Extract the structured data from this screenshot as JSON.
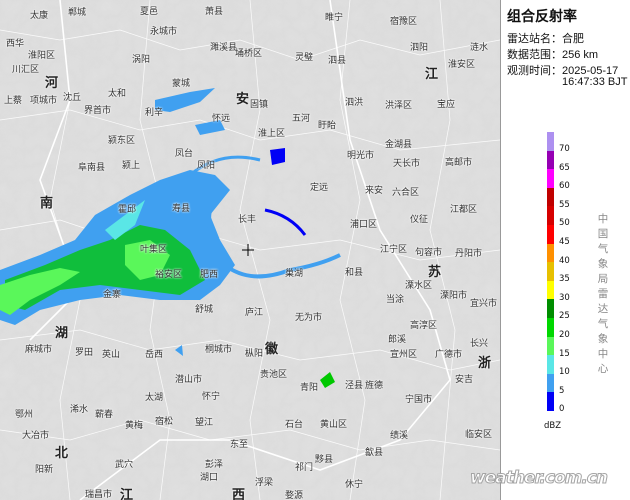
{
  "panel": {
    "title": "组合反射率",
    "station_label": "雷达站名：",
    "station": "合肥",
    "range_label": "数据范围：",
    "range": "256 km",
    "time_label": "观测时间：",
    "date": "2025-05-17",
    "time": "16:47:33 BJT",
    "organization": "中国气象局雷达气象中心"
  },
  "legend": {
    "unit": "dBZ",
    "ticks": [
      "70",
      "65",
      "60",
      "55",
      "50",
      "45",
      "40",
      "35",
      "30",
      "25",
      "20",
      "15",
      "10",
      "5",
      "0"
    ],
    "colors": [
      "#ad90f0",
      "#9600b4",
      "#ff00ff",
      "#c00000",
      "#d60000",
      "#ff0000",
      "#ff9000",
      "#e7c000",
      "#ffff00",
      "#008e00",
      "#00d800",
      "#5af75a",
      "#5ae6e6",
      "#40a0f0",
      "#0000f6"
    ]
  },
  "watermark": "weather.com.cn",
  "map": {
    "provinces": [
      "安",
      "徽",
      "江",
      "苏",
      "浙",
      "河",
      "南",
      "湖",
      "北",
      "江",
      "西"
    ],
    "labels": [
      "太康",
      "郸城",
      "夏邑",
      "永城市",
      "萧县",
      "濉溪县",
      "睢宁",
      "宿豫区",
      "泗阳",
      "涟水",
      "西华",
      "淮阳区",
      "川汇区",
      "项城市",
      "沈丘",
      "上蔡",
      "界首市",
      "太和",
      "涡阳",
      "利辛",
      "蒙城",
      "埇桥区",
      "灵璧",
      "泗县",
      "泗洪",
      "洪泽区",
      "宝应",
      "淮安区",
      "固镇",
      "怀远",
      "五河",
      "淮上区",
      "盱眙",
      "颍东区",
      "颍上",
      "阜南县",
      "凤台",
      "凤阳",
      "明光市",
      "天长市",
      "金湖县",
      "高邮市",
      "定远",
      "来安",
      "六合区",
      "仪征",
      "江都区",
      "霍邱",
      "寿县",
      "长丰",
      "浦口区",
      "江宁区",
      "句容市",
      "丹阳市",
      "叶集区",
      "裕安区",
      "金寨",
      "肥西",
      "巢湖",
      "和县",
      "溧水区",
      "当涂",
      "溧阳市",
      "宜兴市",
      "舒城",
      "庐江",
      "无为市",
      "高淳区",
      "郎溪",
      "广德市",
      "长兴",
      "麻城市",
      "罗田",
      "英山",
      "岳西",
      "桐城市",
      "枞阳",
      "贵池区",
      "宣州区",
      "安吉",
      "潜山市",
      "怀宁",
      "太湖",
      "青阳",
      "泾县",
      "旌德",
      "宁国市",
      "浠水",
      "蕲春",
      "鄂州",
      "大冶市",
      "宿松",
      "望江",
      "黄梅",
      "石台",
      "黄山区",
      "绩溪",
      "临安区",
      "东至",
      "黟县",
      "歙县",
      "阳新",
      "武穴",
      "彭泽",
      "湖口",
      "祁门",
      "休宁",
      "瑞昌市",
      "浮梁",
      "婺源"
    ]
  }
}
